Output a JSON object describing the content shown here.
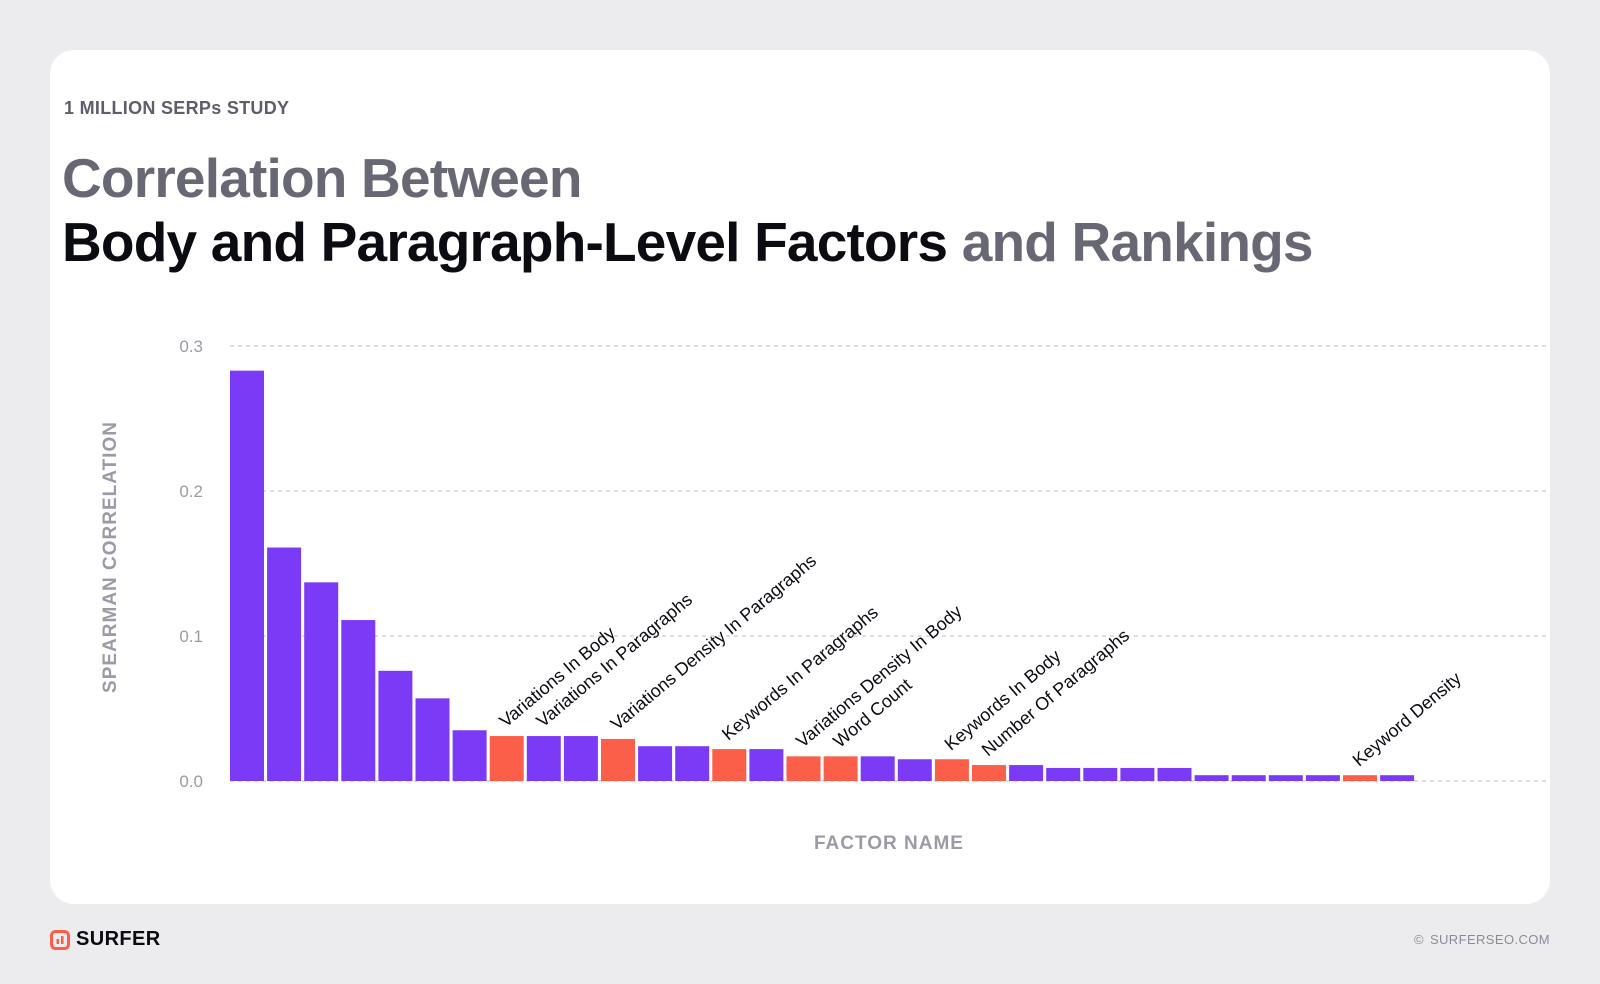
{
  "header": {
    "eyebrow": "1 MILLION SERPs STUDY",
    "title_line1": "Correlation Between",
    "title_line2_strong": "Body and Paragraph-Level Factors",
    "title_line2_muted": " and Rankings"
  },
  "footer": {
    "brand": "SURFER",
    "copyright_symbol": "©",
    "copyright": "SURFERSEO.COM"
  },
  "colors": {
    "default_bar": "#7b3af5",
    "highlight_bar": "#fb5f4a",
    "brand": "#fb5f4a",
    "axis_text": "#9a9ba4",
    "grid": "#bdbdc4"
  },
  "chart_data": {
    "type": "bar",
    "xlabel": "FACTOR NAME",
    "ylabel": "SPEARMAN CORRELATION",
    "ylim": [
      0,
      0.3
    ],
    "yticks": [
      "0.0",
      "0.1",
      "0.2",
      "0.3"
    ],
    "grid": true,
    "values": [
      0.283,
      0.161,
      0.137,
      0.111,
      0.076,
      0.057,
      0.035,
      0.031,
      0.031,
      0.031,
      0.029,
      0.024,
      0.024,
      0.022,
      0.022,
      0.017,
      0.017,
      0.017,
      0.015,
      0.015,
      0.011,
      0.011,
      0.009,
      0.009,
      0.009,
      0.009,
      0.004,
      0.004,
      0.004,
      0.004,
      0.004,
      0.004
    ],
    "highlighted": [
      false,
      false,
      false,
      false,
      false,
      false,
      false,
      true,
      false,
      false,
      true,
      false,
      false,
      true,
      false,
      true,
      true,
      false,
      false,
      true,
      true,
      false,
      false,
      false,
      false,
      false,
      false,
      false,
      false,
      false,
      true,
      false
    ],
    "labels": [
      "",
      "",
      "",
      "",
      "",
      "",
      "",
      "Variations In Body",
      "Variations In Paragraphs",
      "",
      "Variations Density In Paragraphs",
      "",
      "",
      "Keywords In Paragraphs",
      "",
      "Variations Density In Body",
      "Word Count",
      "",
      "",
      "Keywords In Body",
      "Number Of Paragraphs",
      "",
      "",
      "",
      "",
      "",
      "",
      "",
      "",
      "",
      "Keyword Density",
      ""
    ]
  }
}
